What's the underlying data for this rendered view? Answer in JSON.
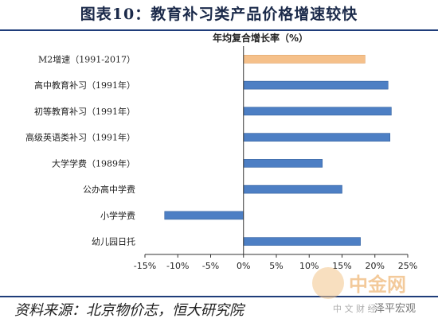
{
  "header": {
    "title": "图表10：教育补习类产品价格增速较快"
  },
  "chart_data": {
    "type": "bar",
    "orientation": "horizontal",
    "title": "年均复合增长率（%）",
    "categories": [
      "M2增速（1991-2017）",
      "高中教育补习（1991年）",
      "初等教育补习（1991年）",
      "高级英语类补习（1991年）",
      "大学学费（1989年）",
      "公办高中学费",
      "小学学费",
      "幼儿园日托"
    ],
    "values": [
      18.5,
      22.0,
      22.5,
      22.3,
      12.0,
      15.0,
      -12.0,
      17.8
    ],
    "bar_colors": [
      "#f5c08a",
      "#4d7fc4",
      "#4d7fc4",
      "#4d7fc4",
      "#4d7fc4",
      "#4d7fc4",
      "#4d7fc4",
      "#4d7fc4"
    ],
    "xlim": [
      -15,
      25
    ],
    "xticks": [
      -15,
      -10,
      -5,
      0,
      5,
      10,
      15,
      20,
      25
    ],
    "tick_suffix": "%",
    "xlabel": "",
    "ylabel": ""
  },
  "footer": {
    "source": "资料来源：北京物价志，恒大研究院",
    "watermark_brand": "中金网",
    "watermark_sub": "中 文 财 经",
    "wechat": "泽平宏观"
  },
  "colors": {
    "accent": "#1f3d7a",
    "bar_blue": "#4d7fc4",
    "bar_orange": "#f5c08a",
    "axis": "#333333"
  }
}
